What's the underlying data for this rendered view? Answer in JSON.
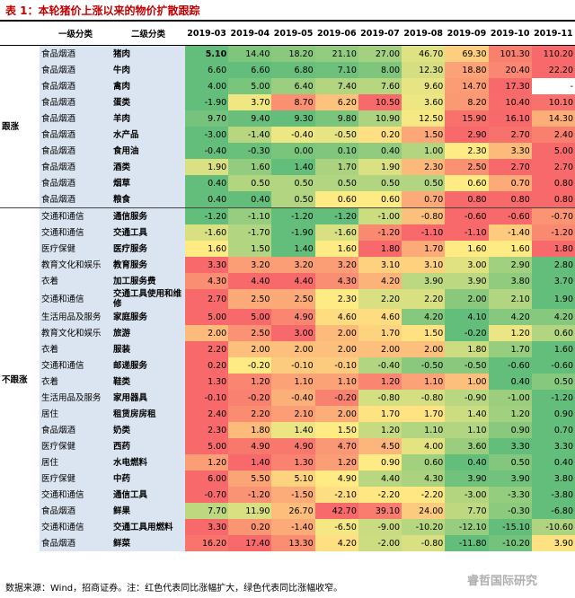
{
  "title": "表 1：本轮猪价上涨以来的物价扩散跟踪",
  "header": [
    "一级分类",
    "二级分类",
    "2019-03",
    "2019-04",
    "2019-05",
    "2019-06",
    "2019-07",
    "2019-08",
    "2019-09",
    "2019-10",
    "2019-11"
  ],
  "groups": [
    {
      "label": "跟涨",
      "rows": [
        {
          "level1": "食品烟酒",
          "level2": "猪肉",
          "values": [
            "5.10",
            "14.40",
            "18.20",
            "21.10",
            "27.00",
            "46.70",
            "69.30",
            "101.30",
            "110.20"
          ]
        },
        {
          "level1": "食品烟酒",
          "level2": "牛肉",
          "values": [
            "6.60",
            "6.60",
            "6.80",
            "7.10",
            "8.00",
            "12.30",
            "18.80",
            "20.40",
            "22.20"
          ]
        },
        {
          "level1": "食品烟酒",
          "level2": "禽肉",
          "values": [
            "4.00",
            "5.00",
            "6.40",
            "7.40",
            "7.60",
            "9.60",
            "14.70",
            "17.30",
            "-"
          ]
        },
        {
          "level1": "食品烟酒",
          "level2": "蛋类",
          "values": [
            "-1.90",
            "3.70",
            "8.70",
            "6.20",
            "10.50",
            "3.60",
            "8.20",
            "10.40",
            "10.10"
          ]
        },
        {
          "level1": "食品烟酒",
          "level2": "羊肉",
          "values": [
            "9.70",
            "9.40",
            "9.30",
            "9.80",
            "10.90",
            "12.50",
            "15.90",
            "16.10",
            "14.30"
          ]
        },
        {
          "level1": "食品烟酒",
          "level2": "水产品",
          "values": [
            "-3.00",
            "-1.40",
            "-0.40",
            "-0.50",
            "0.20",
            "1.50",
            "2.90",
            "2.70",
            "2.40"
          ]
        },
        {
          "level1": "食品烟酒",
          "level2": "食用油",
          "values": [
            "-0.40",
            "-0.30",
            "0.00",
            "0.10",
            "0.40",
            "1.00",
            "2.30",
            "3.30",
            "5.00"
          ]
        },
        {
          "level1": "食品烟酒",
          "level2": "酒类",
          "values": [
            "1.90",
            "1.60",
            "1.40",
            "1.70",
            "1.90",
            "2.30",
            "2.50",
            "2.70",
            "2.70"
          ]
        },
        {
          "level1": "食品烟酒",
          "level2": "烟草",
          "values": [
            "0.40",
            "0.50",
            "0.50",
            "0.50",
            "0.50",
            "0.50",
            "0.60",
            "0.70",
            "0.80"
          ]
        },
        {
          "level1": "食品烟酒",
          "level2": "粮食",
          "values": [
            "0.40",
            "0.40",
            "0.50",
            "0.60",
            "0.60",
            "0.70",
            "0.80",
            "0.80",
            "0.80"
          ]
        }
      ]
    },
    {
      "label": "不跟涨",
      "rows": [
        {
          "level1": "交通和通信",
          "level2": "通信服务",
          "values": [
            "-1.20",
            "-1.10",
            "-1.20",
            "-1.20",
            "-1.00",
            "-0.80",
            "-0.60",
            "-0.60",
            "-0.70"
          ]
        },
        {
          "level1": "交通和通信",
          "level2": "交通工具",
          "values": [
            "-1.60",
            "-1.70",
            "-1.90",
            "-1.60",
            "-1.20",
            "-1.10",
            "-1.10",
            "-1.40",
            "-1.20"
          ]
        },
        {
          "level1": "医疗保健",
          "level2": "医疗服务",
          "values": [
            "1.60",
            "1.50",
            "1.40",
            "1.60",
            "1.80",
            "1.70",
            "1.60",
            "1.60",
            "1.80"
          ]
        },
        {
          "level1": "教育文化和娱乐",
          "level2": "教育服务",
          "values": [
            "3.30",
            "3.20",
            "3.20",
            "3.20",
            "3.10",
            "3.10",
            "3.00",
            "2.90",
            "2.80"
          ]
        },
        {
          "level1": "衣着",
          "level2": "加工服务费",
          "values": [
            "4.30",
            "4.40",
            "4.40",
            "4.30",
            "4.20",
            "3.90",
            "3.90",
            "3.80",
            "3.70"
          ]
        },
        {
          "level1": "交通和通信",
          "level2": "交通工具使用和维修",
          "values": [
            "2.70",
            "2.50",
            "2.50",
            "2.30",
            "2.20",
            "2.20",
            "2.00",
            "2.10",
            "1.90"
          ]
        },
        {
          "level1": "生活用品及服务",
          "level2": "家庭服务",
          "values": [
            "5.00",
            "5.00",
            "4.90",
            "4.60",
            "4.60",
            "4.20",
            "4.10",
            "4.20",
            "4.20"
          ]
        },
        {
          "level1": "教育文化和娱乐",
          "level2": "旅游",
          "values": [
            "2.00",
            "2.50",
            "3.00",
            "2.00",
            "1.70",
            "1.50",
            "-0.20",
            "1.20",
            "0.60"
          ]
        },
        {
          "level1": "衣着",
          "level2": "服装",
          "values": [
            "2.20",
            "2.00",
            "2.00",
            "2.00",
            "2.00",
            "2.00",
            "1.80",
            "1.70",
            "1.60"
          ]
        },
        {
          "level1": "交通和通信",
          "level2": "邮递服务",
          "values": [
            "0.20",
            "-0.20",
            "-0.10",
            "-0.10",
            "-0.40",
            "-0.50",
            "-0.50",
            "-0.60",
            "-0.60"
          ]
        },
        {
          "level1": "衣着",
          "level2": "鞋类",
          "values": [
            "1.30",
            "1.20",
            "1.10",
            "1.10",
            "1.20",
            "1.10",
            "1.00",
            "0.40",
            "0.50"
          ]
        },
        {
          "level1": "生活用品及服务",
          "level2": "家用器具",
          "values": [
            "-0.10",
            "-0.20",
            "-0.40",
            "-0.20",
            "-0.80",
            "-0.80",
            "-0.90",
            "-1.00",
            "-1.20"
          ]
        },
        {
          "level1": "居住",
          "level2": "租赁房房租",
          "values": [
            "2.40",
            "2.20",
            "2.10",
            "2.00",
            "1.70",
            "1.70",
            "1.40",
            "1.20",
            "0.90"
          ]
        },
        {
          "level1": "食品烟酒",
          "level2": "奶类",
          "values": [
            "2.30",
            "1.80",
            "1.40",
            "1.50",
            "1.20",
            "1.10",
            "1.10",
            "0.90",
            "0.70"
          ]
        },
        {
          "level1": "医疗保健",
          "level2": "西药",
          "values": [
            "5.00",
            "4.90",
            "4.90",
            "4.70",
            "4.50",
            "4.00",
            "3.60",
            "3.30",
            "3.30"
          ]
        },
        {
          "level1": "居住",
          "level2": "水电燃料",
          "values": [
            "1.20",
            "1.40",
            "1.30",
            "1.20",
            "0.90",
            "0.60",
            "0.40",
            "0.50",
            "0.40"
          ]
        },
        {
          "level1": "医疗保健",
          "level2": "中药",
          "values": [
            "6.00",
            "5.50",
            "5.10",
            "4.90",
            "4.40",
            "4.30",
            "3.90",
            "3.90",
            "3.80"
          ]
        },
        {
          "level1": "交通和通信",
          "level2": "通信工具",
          "values": [
            "-0.70",
            "-1.20",
            "-1.50",
            "-2.10",
            "-2.20",
            "-2.20",
            "-3.00",
            "-3.30",
            "-3.80"
          ]
        },
        {
          "level1": "食品烟酒",
          "level2": "鲜果",
          "values": [
            "7.70",
            "11.90",
            "26.70",
            "42.70",
            "39.10",
            "24.00",
            "7.70",
            "-0.30",
            "-6.80"
          ]
        },
        {
          "level1": "交通和通信",
          "level2": "交通工具用燃料",
          "values": [
            "3.30",
            "0.20",
            "-1.40",
            "-6.50",
            "-9.00",
            "-10.20",
            "-12.10",
            "-15.10",
            "-10.60"
          ]
        },
        {
          "level1": "食品烟酒",
          "level2": "鲜菜",
          "values": [
            "16.20",
            "17.40",
            "13.30",
            "4.20",
            "-2.00",
            "-0.80",
            "-11.80",
            "-10.20",
            "3.90"
          ]
        }
      ]
    }
  ],
  "footnote": "数据来源：Wind，招商证券。注：红色代表同比涨幅扩大，绿色代表同比涨幅收窄。",
  "watermark": "睿哲国际研究"
}
